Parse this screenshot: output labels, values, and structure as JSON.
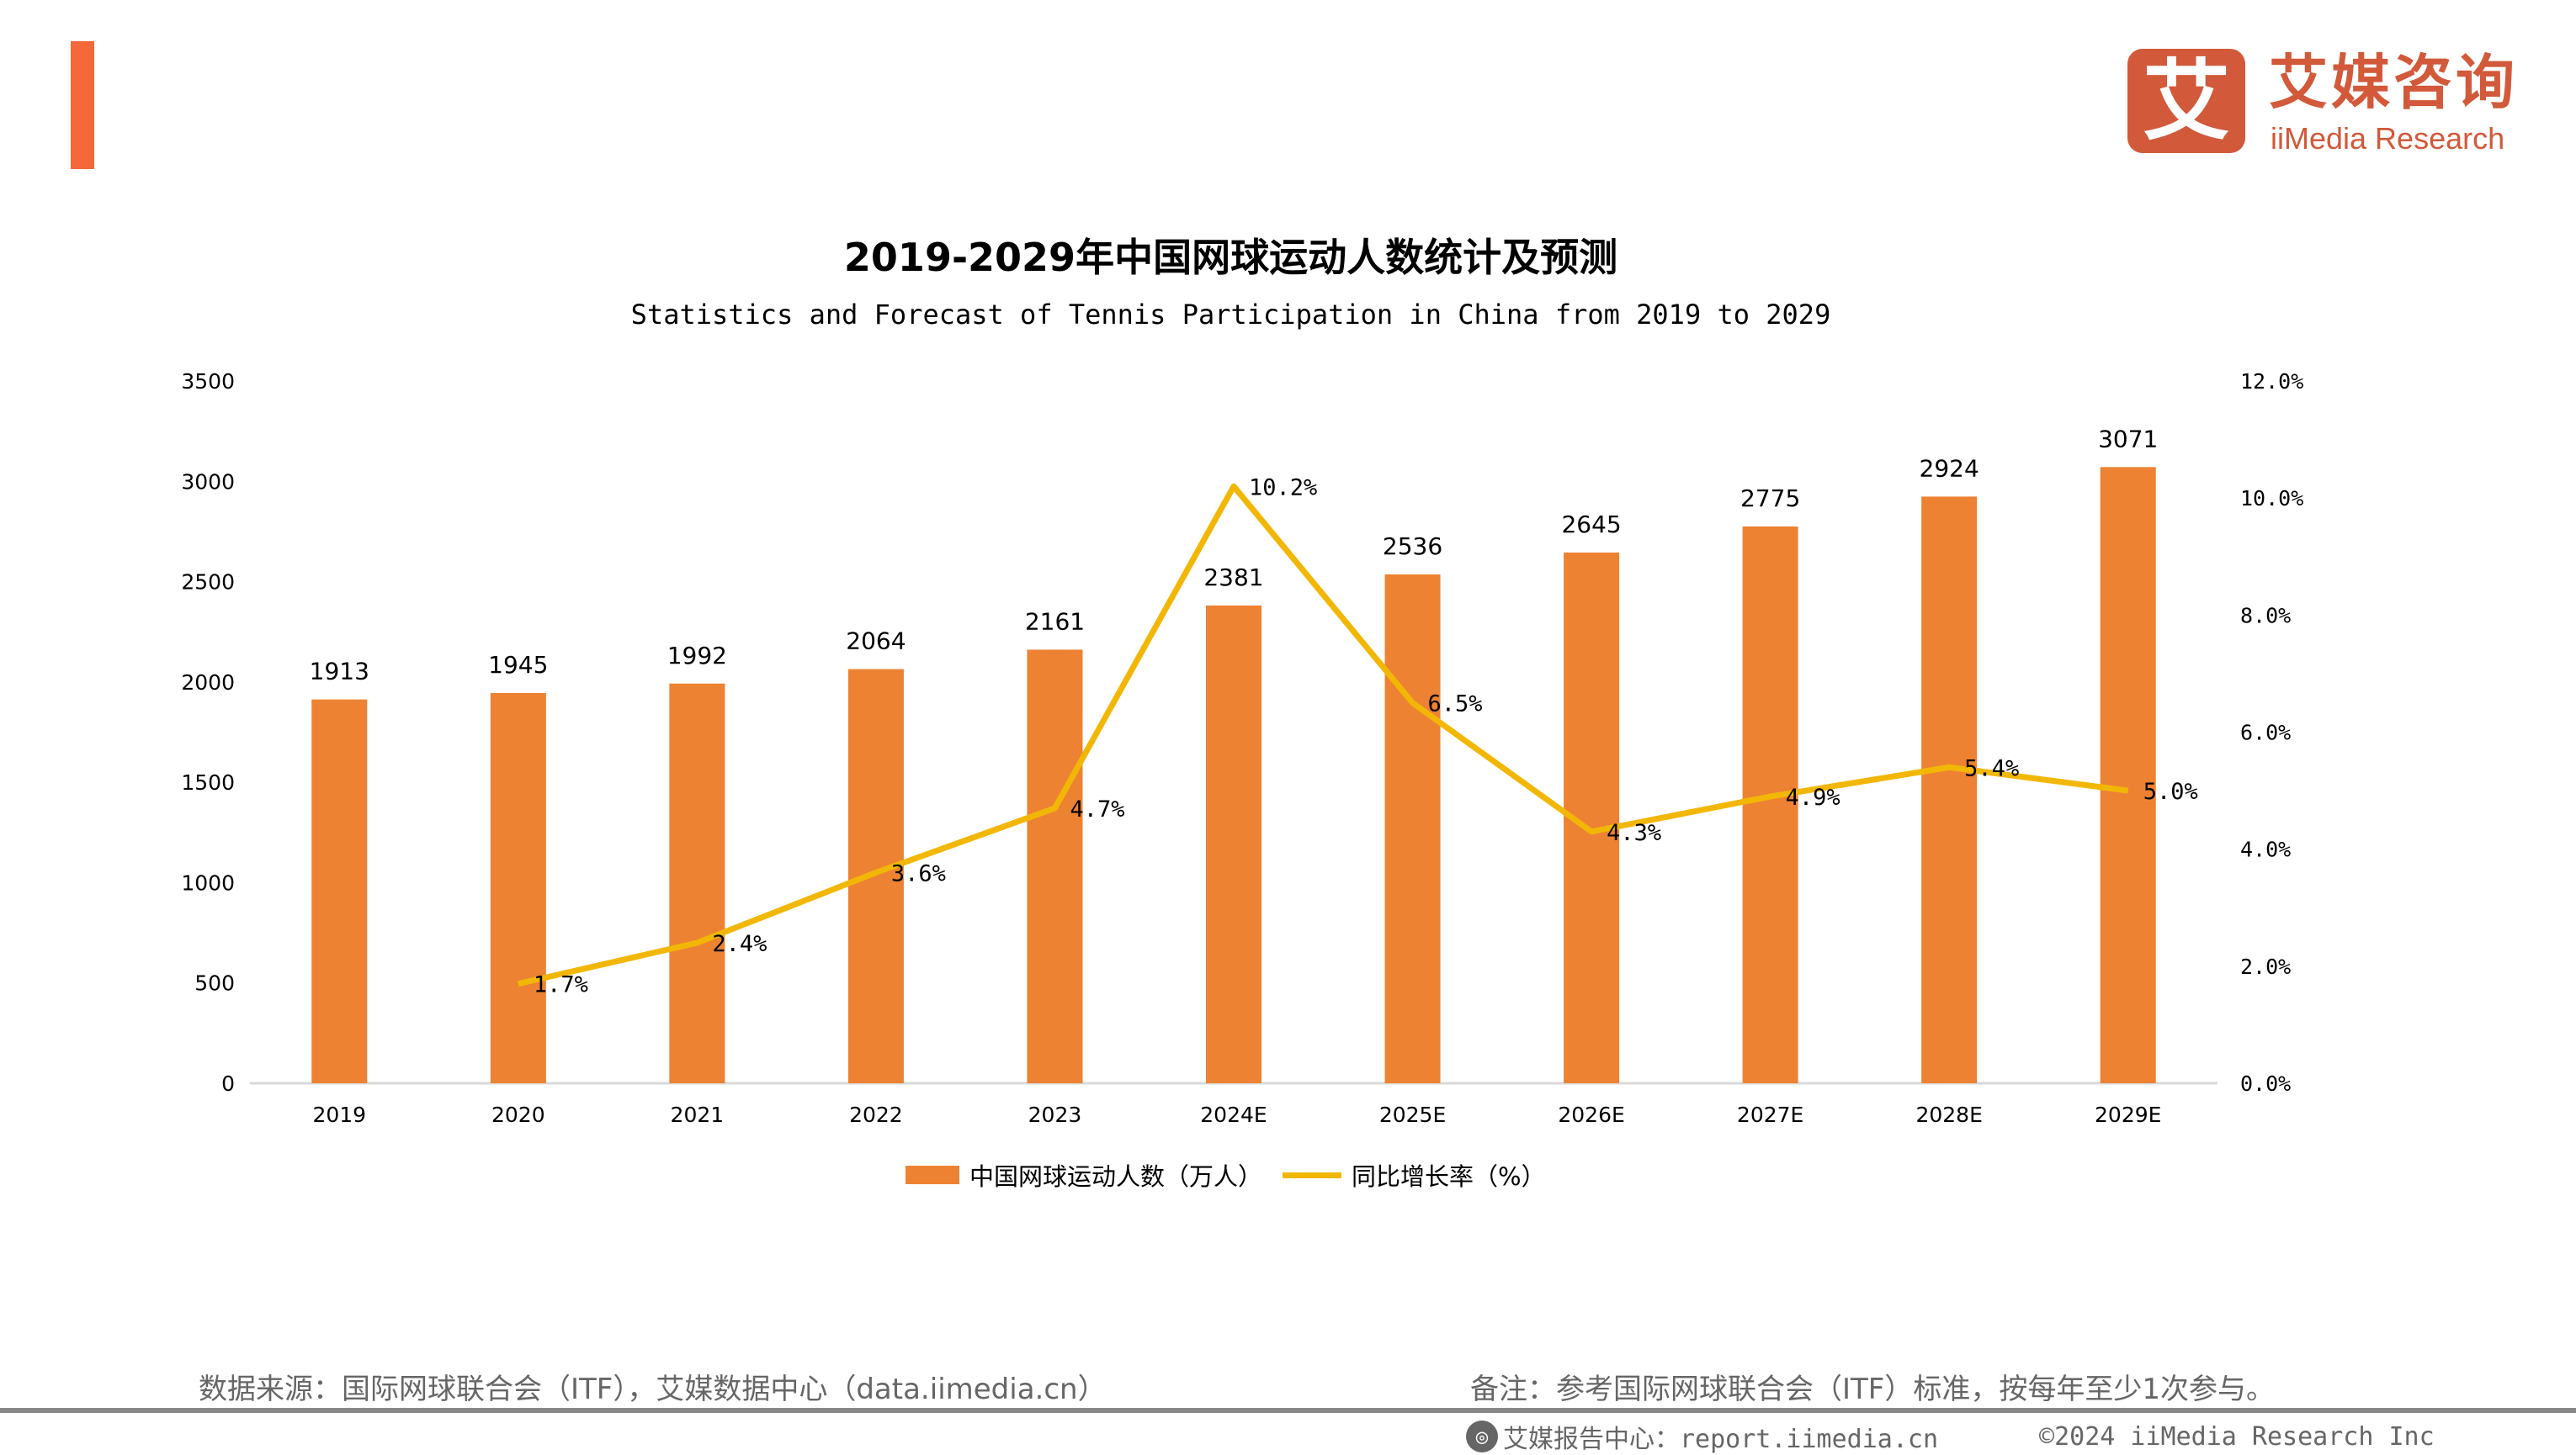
{
  "header": {
    "logo_cn": "艾媒咨询",
    "logo_en": "iiMedia Research",
    "logo_mark": "艾",
    "accent_color": "#F4683A",
    "logo_color": "#D2593A"
  },
  "chart_data": {
    "type": "bar+line",
    "title": "2019-2029年中国网球运动人数统计及预测",
    "subtitle": "Statistics and Forecast of Tennis Participation in China from 2019 to 2029",
    "categories": [
      "2019",
      "2020",
      "2021",
      "2022",
      "2023",
      "2024E",
      "2025E",
      "2026E",
      "2027E",
      "2028E",
      "2029E"
    ],
    "series": [
      {
        "name": "中国网球运动人数（万人）",
        "type": "bar",
        "axis": "left",
        "color": "#ED8232",
        "values": [
          1913,
          1945,
          1992,
          2064,
          2161,
          2381,
          2536,
          2645,
          2775,
          2924,
          3071
        ]
      },
      {
        "name": "同比增长率（%）",
        "type": "line",
        "axis": "right",
        "color": "#F2B705",
        "values": [
          null,
          1.7,
          2.4,
          3.6,
          4.7,
          10.2,
          6.5,
          4.3,
          4.9,
          5.4,
          5.0
        ],
        "labels": [
          null,
          "1.7%",
          "2.4%",
          "3.6%",
          "4.7%",
          "10.2%",
          "6.5%",
          "4.3%",
          "4.9%",
          "5.4%",
          "5.0%"
        ]
      }
    ],
    "left_axis": {
      "range": [
        0,
        3500
      ],
      "ticks": [
        "0",
        "500",
        "1000",
        "1500",
        "2000",
        "2500",
        "3000",
        "3500"
      ]
    },
    "right_axis": {
      "range": [
        0,
        12
      ],
      "ticks": [
        "0.0%",
        "2.0%",
        "4.0%",
        "6.0%",
        "8.0%",
        "10.0%",
        "12.0%"
      ]
    },
    "grid": false,
    "legend": "bottom"
  },
  "footer": {
    "source": "数据来源：国际网球联合会（ITF），艾媒数据中心（data.iimedia.cn）",
    "note": "备注：参考国际网球联合会（ITF）标准，按每年至少1次参与。",
    "report_center": "艾媒报告中心：report.iimedia.cn",
    "copyright": "©2024  iiMedia Research  Inc"
  }
}
